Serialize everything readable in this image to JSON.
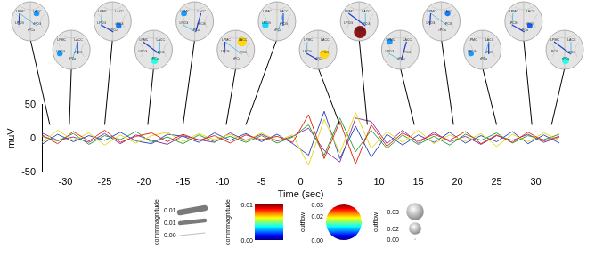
{
  "chart_data": {
    "type": "line",
    "x_label": "Time (sec)",
    "y_label": "muV",
    "x": [
      -33,
      -31,
      -29,
      -27,
      -25,
      -23,
      -21,
      -19,
      -17,
      -15,
      -13,
      -11,
      -9,
      -7,
      -5,
      -3,
      -1,
      1,
      3,
      5,
      7,
      9,
      11,
      13,
      15,
      17,
      19,
      21,
      23,
      25,
      27,
      29,
      31,
      33
    ],
    "series": [
      {
        "color": "#e03020",
        "values": [
          5,
          -8,
          10,
          -4,
          12,
          -6,
          3,
          8,
          -5,
          6,
          -3,
          4,
          -7,
          5,
          -2,
          3,
          -6,
          35,
          -30,
          25,
          -38,
          20,
          -12,
          8,
          -4,
          6,
          -3,
          10,
          -8,
          5,
          -6,
          9,
          -4,
          3
        ]
      },
      {
        "color": "#e8d820",
        "values": [
          -6,
          12,
          -3,
          8,
          -10,
          5,
          -7,
          4,
          9,
          -5,
          7,
          -2,
          6,
          -4,
          8,
          -3,
          5,
          -40,
          28,
          -22,
          38,
          -15,
          10,
          -6,
          12,
          -8,
          5,
          -4,
          7,
          -12,
          6,
          -5,
          8,
          -3
        ]
      },
      {
        "color": "#30a040",
        "values": [
          3,
          -4,
          7,
          -9,
          4,
          -2,
          10,
          -6,
          2,
          -8,
          5,
          -5,
          3,
          -6,
          4,
          -7,
          2,
          20,
          -25,
          30,
          -20,
          12,
          -15,
          5,
          -9,
          3,
          -10,
          6,
          -3,
          8,
          -7,
          4,
          -2,
          6
        ]
      },
      {
        "color": "#3050c0",
        "values": [
          -9,
          6,
          -5,
          4,
          -3,
          9,
          -4,
          -8,
          6,
          3,
          -6,
          8,
          -3,
          7,
          -5,
          6,
          -8,
          -25,
          40,
          -30,
          18,
          -28,
          6,
          -10,
          5,
          -6,
          9,
          -7,
          4,
          -5,
          10,
          -8,
          5,
          -7
        ]
      },
      {
        "color": "#8a3aa8",
        "values": [
          8,
          -3,
          2,
          -6,
          7,
          -8,
          5,
          -3,
          -9,
          4,
          -2,
          -6,
          8,
          -3,
          6,
          -4,
          3,
          15,
          -18,
          -35,
          30,
          25,
          -8,
          12,
          -7,
          9,
          -5,
          3,
          -9,
          4,
          -3,
          6,
          -6,
          2
        ]
      }
    ],
    "xlim": [
      -33,
      33
    ],
    "xticks": [
      -30,
      -25,
      -20,
      -15,
      -10,
      -5,
      0,
      5,
      10,
      15,
      20,
      25,
      30
    ],
    "ylim": [
      -50,
      50
    ],
    "yticks": [
      -50,
      0,
      50
    ],
    "grid": false,
    "brain_snapshots": {
      "regions": [
        "LPMC",
        "LACC",
        "LPCG",
        "rPCG",
        "rPCu"
      ],
      "snapshots": [
        {
          "time": -32,
          "outflow": 0.008
        },
        {
          "time": -29.5,
          "outflow": 0.008
        },
        {
          "time": -25,
          "outflow": 0.007
        },
        {
          "time": -19.5,
          "outflow": 0.012
        },
        {
          "time": -15,
          "outflow": 0.008
        },
        {
          "time": -9.5,
          "outflow": 0.02
        },
        {
          "time": -7,
          "outflow": 0.01
        },
        {
          "time": 5,
          "outflow": 0.02
        },
        {
          "time": 8.5,
          "outflow": 0.03
        },
        {
          "time": 14.5,
          "outflow": 0.008
        },
        {
          "time": 19.5,
          "outflow": 0.007
        },
        {
          "time": 25,
          "outflow": 0.008
        },
        {
          "time": 29.5,
          "outflow": 0.006
        },
        {
          "time": 32,
          "outflow": 0.012
        }
      ]
    },
    "legend_keys": [
      {
        "type": "width",
        "title": "commmagnitude",
        "items": [
          {
            "value": 0.012,
            "label": "0.01"
          },
          {
            "value": 0.008,
            "label": "0.01"
          },
          {
            "value": 0,
            "label": "0.00"
          }
        ]
      },
      {
        "type": "colorbar",
        "title": "commmagnitude",
        "range": [
          0,
          0.01
        ],
        "ticks": [
          {
            "value": 0,
            "label": "0.00"
          },
          {
            "value": 0.01,
            "label": "0.01"
          }
        ]
      },
      {
        "type": "color_circle",
        "title": "outflow",
        "range": [
          0,
          0.03
        ],
        "ticks": [
          {
            "value": 0,
            "label": "0.00"
          },
          {
            "value": 0.02,
            "label": "0.02"
          },
          {
            "value": 0.03,
            "label": "0.03"
          }
        ]
      },
      {
        "type": "size",
        "title": "outflow",
        "items": [
          {
            "value": 0.03,
            "label": "0.03"
          },
          {
            "value": 0.02,
            "label": "0.02"
          },
          {
            "value": 0,
            "label": "0.00"
          }
        ]
      }
    ]
  }
}
